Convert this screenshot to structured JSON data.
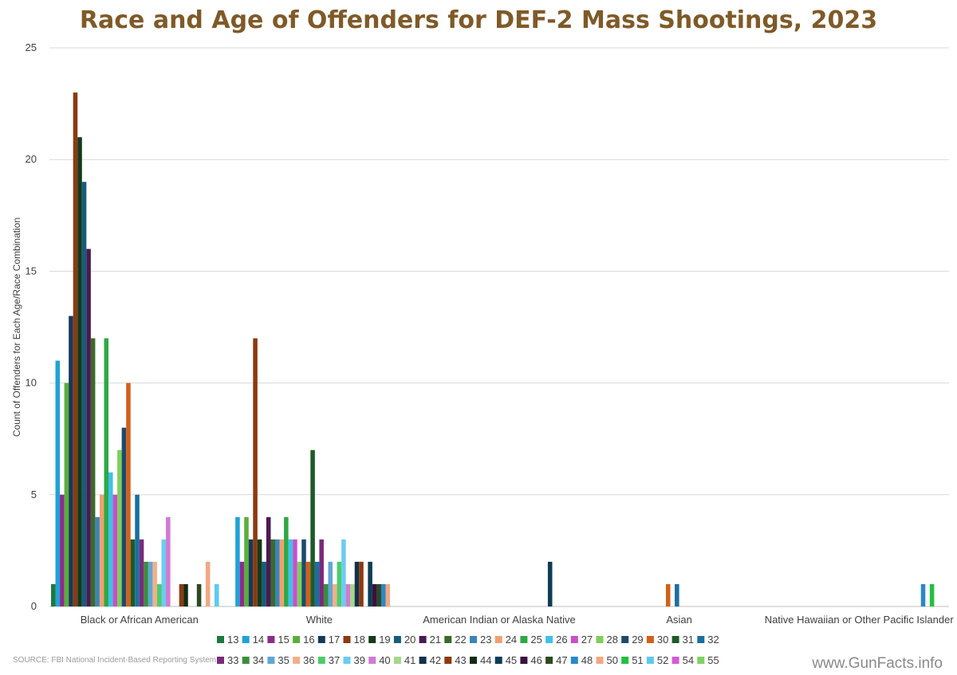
{
  "chart_data": {
    "type": "bar",
    "title": "Race and Age of Offenders for DEF-2 Mass Shootings, 2023",
    "ylabel": "Count of Offenders for Each Age/Race Combination",
    "xlabel": "",
    "ylim": [
      0,
      25
    ],
    "yticks": [
      0,
      5,
      10,
      15,
      20,
      25
    ],
    "grid": true,
    "legend_position": "bottom",
    "categories": [
      "Black or African American",
      "White",
      "American Indian or Alaska Native",
      "Asian",
      "Native Hawaiian or Other Pacific Islander"
    ],
    "series": [
      {
        "name": "13",
        "color": "#1e7a3c",
        "values": [
          1,
          null,
          null,
          null,
          null
        ]
      },
      {
        "name": "14",
        "color": "#1fa3d6",
        "values": [
          11,
          4,
          null,
          null,
          null
        ]
      },
      {
        "name": "15",
        "color": "#8c2b8c",
        "values": [
          5,
          2,
          null,
          null,
          null
        ]
      },
      {
        "name": "16",
        "color": "#5aae3c",
        "values": [
          10,
          4,
          null,
          null,
          null
        ]
      },
      {
        "name": "17",
        "color": "#163a5a",
        "values": [
          13,
          3,
          null,
          null,
          null
        ]
      },
      {
        "name": "18",
        "color": "#8c3a10",
        "values": [
          23,
          12,
          null,
          null,
          null
        ]
      },
      {
        "name": "19",
        "color": "#133a1c",
        "values": [
          21,
          3,
          null,
          null,
          null
        ]
      },
      {
        "name": "20",
        "color": "#165c7a",
        "values": [
          19,
          2,
          null,
          null,
          null
        ]
      },
      {
        "name": "21",
        "color": "#4a1a52",
        "values": [
          16,
          4,
          null,
          null,
          null
        ]
      },
      {
        "name": "22",
        "color": "#3b6a2a",
        "values": [
          12,
          3,
          null,
          null,
          null
        ]
      },
      {
        "name": "23",
        "color": "#3a86b8",
        "values": [
          4,
          3,
          null,
          null,
          null
        ]
      },
      {
        "name": "24",
        "color": "#f0a070",
        "values": [
          5,
          3,
          null,
          null,
          null
        ]
      },
      {
        "name": "25",
        "color": "#2ea844",
        "values": [
          12,
          4,
          null,
          null,
          null
        ]
      },
      {
        "name": "26",
        "color": "#3fc0ea",
        "values": [
          6,
          3,
          null,
          null,
          null
        ]
      },
      {
        "name": "27",
        "color": "#c94fc9",
        "values": [
          5,
          3,
          null,
          null,
          null
        ]
      },
      {
        "name": "28",
        "color": "#7ecf5a",
        "values": [
          7,
          2,
          null,
          null,
          null
        ]
      },
      {
        "name": "29",
        "color": "#1d4a6c",
        "values": [
          8,
          3,
          null,
          null,
          null
        ]
      },
      {
        "name": "30",
        "color": "#d2601a",
        "values": [
          10,
          2,
          null,
          1,
          null
        ]
      },
      {
        "name": "31",
        "color": "#1e5a28",
        "values": [
          3,
          7,
          null,
          null,
          null
        ]
      },
      {
        "name": "32",
        "color": "#1a6fa0",
        "values": [
          5,
          2,
          null,
          1,
          null
        ]
      },
      {
        "name": "33",
        "color": "#7a2a7a",
        "values": [
          3,
          3,
          null,
          null,
          null
        ]
      },
      {
        "name": "34",
        "color": "#3c8c3c",
        "values": [
          2,
          1,
          null,
          null,
          null
        ]
      },
      {
        "name": "35",
        "color": "#5fa8d3",
        "values": [
          2,
          2,
          null,
          null,
          null
        ]
      },
      {
        "name": "36",
        "color": "#f2b08a",
        "values": [
          2,
          1,
          null,
          null,
          null
        ]
      },
      {
        "name": "37",
        "color": "#4ccc6a",
        "values": [
          1,
          2,
          null,
          null,
          null
        ]
      },
      {
        "name": "39",
        "color": "#6cccf0",
        "values": [
          3,
          3,
          null,
          null,
          null
        ]
      },
      {
        "name": "40",
        "color": "#d27ad2",
        "values": [
          4,
          1,
          null,
          null,
          null
        ]
      },
      {
        "name": "41",
        "color": "#a6d68a",
        "values": [
          null,
          1,
          null,
          null,
          null
        ]
      },
      {
        "name": "42",
        "color": "#13314a",
        "values": [
          null,
          2,
          null,
          null,
          null
        ]
      },
      {
        "name": "43",
        "color": "#8c3a10",
        "values": [
          1,
          2,
          null,
          null,
          null
        ]
      },
      {
        "name": "44",
        "color": "#102c14",
        "values": [
          1,
          null,
          null,
          null,
          null
        ]
      },
      {
        "name": "45",
        "color": "#0e3c54",
        "values": [
          null,
          2,
          2,
          null,
          null
        ]
      },
      {
        "name": "46",
        "color": "#3a123e",
        "values": [
          null,
          1,
          null,
          null,
          null
        ]
      },
      {
        "name": "47",
        "color": "#2c4a20",
        "values": [
          1,
          1,
          null,
          null,
          null
        ]
      },
      {
        "name": "48",
        "color": "#2a88c8",
        "values": [
          null,
          1,
          null,
          null,
          1
        ]
      },
      {
        "name": "50",
        "color": "#f2a882",
        "values": [
          2,
          1,
          null,
          null,
          null
        ]
      },
      {
        "name": "51",
        "color": "#22c040",
        "values": [
          null,
          null,
          null,
          null,
          1
        ]
      },
      {
        "name": "52",
        "color": "#5ccaf0",
        "values": [
          1,
          null,
          null,
          null,
          null
        ]
      },
      {
        "name": "54",
        "color": "#d45ad4",
        "values": [
          null,
          null,
          null,
          null,
          null
        ]
      },
      {
        "name": "55",
        "color": "#7ed064",
        "values": [
          null,
          null,
          null,
          null,
          null
        ]
      }
    ]
  },
  "source_note": "SOURCE: FBI National Incident-Based Reporting System",
  "watermark": "www.GunFacts.info",
  "colors": {
    "title": "#7f5a28",
    "grid": "#d9d9d9",
    "axis": "#bfbfbf"
  }
}
